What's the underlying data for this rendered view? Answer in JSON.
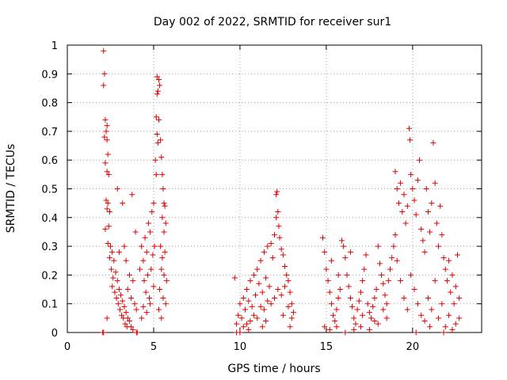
{
  "chart_data": {
    "type": "scatter",
    "title": "Day 002 of 2022, SRMTID for receiver sur1",
    "xlabel": "GPS time / hours",
    "ylabel": "SRMTID / TECUs",
    "xlim": [
      0,
      24
    ],
    "ylim": [
      0,
      1
    ],
    "xticks": [
      0,
      5,
      10,
      15,
      20
    ],
    "xtick_labels": [
      "0",
      "5",
      "10",
      "15",
      "20"
    ],
    "yticks": [
      0,
      0.1,
      0.2,
      0.3,
      0.4,
      0.5,
      0.6,
      0.7,
      0.8,
      0.9,
      1
    ],
    "ytick_labels": [
      "0",
      "0.1",
      "0.2",
      "0.3",
      "0.4",
      "0.5",
      "0.6",
      "0.7",
      "0.8",
      "0.9",
      "1"
    ],
    "grid": true,
    "marker": "+",
    "series": [
      {
        "name": "sur1",
        "color": "#e00000",
        "points": [
          [
            2.1,
            0.98
          ],
          [
            2.15,
            0.9
          ],
          [
            2.1,
            0.86
          ],
          [
            2.2,
            0.74
          ],
          [
            2.3,
            0.72
          ],
          [
            2.25,
            0.7
          ],
          [
            2.15,
            0.68
          ],
          [
            2.3,
            0.67
          ],
          [
            2.35,
            0.62
          ],
          [
            2.2,
            0.59
          ],
          [
            2.3,
            0.56
          ],
          [
            2.4,
            0.55
          ],
          [
            2.25,
            0.46
          ],
          [
            2.35,
            0.45
          ],
          [
            2.3,
            0.43
          ],
          [
            2.45,
            0.42
          ],
          [
            2.2,
            0.36
          ],
          [
            2.4,
            0.37
          ],
          [
            2.5,
            0.3
          ],
          [
            2.35,
            0.31
          ],
          [
            2.6,
            0.28
          ],
          [
            2.45,
            0.26
          ],
          [
            2.7,
            0.25
          ],
          [
            2.55,
            0.22
          ],
          [
            2.8,
            0.21
          ],
          [
            2.65,
            0.19
          ],
          [
            2.9,
            0.18
          ],
          [
            2.6,
            0.16
          ],
          [
            3.0,
            0.15
          ],
          [
            2.75,
            0.14
          ],
          [
            3.1,
            0.13
          ],
          [
            2.85,
            0.12
          ],
          [
            3.2,
            0.11
          ],
          [
            2.95,
            0.1
          ],
          [
            3.3,
            0.09
          ],
          [
            3.05,
            0.08
          ],
          [
            3.4,
            0.07
          ],
          [
            3.15,
            0.06
          ],
          [
            3.5,
            0.05
          ],
          [
            3.25,
            0.05
          ],
          [
            3.6,
            0.04
          ],
          [
            3.35,
            0.03
          ],
          [
            3.7,
            0.02
          ],
          [
            3.45,
            0.02
          ],
          [
            3.8,
            0.01
          ],
          [
            2.3,
            0.05
          ],
          [
            2.9,
            0.5
          ],
          [
            3.2,
            0.45
          ],
          [
            3.0,
            0.28
          ],
          [
            3.3,
            0.3
          ],
          [
            3.4,
            0.25
          ],
          [
            3.6,
            0.2
          ],
          [
            3.5,
            0.15
          ],
          [
            3.7,
            0.12
          ],
          [
            3.8,
            0.18
          ],
          [
            3.9,
            0.1
          ],
          [
            4.0,
            0.08
          ],
          [
            3.75,
            0.48
          ],
          [
            3.95,
            0.35
          ],
          [
            2.05,
            0.0
          ],
          [
            2.1,
            0.0
          ],
          [
            4.0,
            0.0
          ],
          [
            4.05,
            0.0
          ],
          [
            4.2,
            0.22
          ],
          [
            4.3,
            0.3
          ],
          [
            4.4,
            0.25
          ],
          [
            4.5,
            0.33
          ],
          [
            4.6,
            0.28
          ],
          [
            4.7,
            0.38
          ],
          [
            4.8,
            0.35
          ],
          [
            4.9,
            0.42
          ],
          [
            5.0,
            0.45
          ],
          [
            4.45,
            0.18
          ],
          [
            4.55,
            0.14
          ],
          [
            4.65,
            0.2
          ],
          [
            4.75,
            0.12
          ],
          [
            4.85,
            0.22
          ],
          [
            4.95,
            0.27
          ],
          [
            5.05,
            0.3
          ],
          [
            5.15,
            0.55
          ],
          [
            5.1,
            0.6
          ],
          [
            5.2,
            0.69
          ],
          [
            5.25,
            0.66
          ],
          [
            5.15,
            0.75
          ],
          [
            5.3,
            0.74
          ],
          [
            5.2,
            0.83
          ],
          [
            5.25,
            0.84
          ],
          [
            5.3,
            0.88
          ],
          [
            5.2,
            0.89
          ],
          [
            5.35,
            0.86
          ],
          [
            5.4,
            0.67
          ],
          [
            5.45,
            0.61
          ],
          [
            5.5,
            0.55
          ],
          [
            5.55,
            0.5
          ],
          [
            5.6,
            0.45
          ],
          [
            5.65,
            0.44
          ],
          [
            5.5,
            0.4
          ],
          [
            5.7,
            0.38
          ],
          [
            5.6,
            0.35
          ],
          [
            5.4,
            0.3
          ],
          [
            5.5,
            0.26
          ],
          [
            5.45,
            0.22
          ],
          [
            5.6,
            0.2
          ],
          [
            5.35,
            0.15
          ],
          [
            5.55,
            0.12
          ],
          [
            5.3,
            0.08
          ],
          [
            5.45,
            0.05
          ],
          [
            5.7,
            0.1
          ],
          [
            5.75,
            0.18
          ],
          [
            5.65,
            0.28
          ],
          [
            4.3,
            0.05
          ],
          [
            4.4,
            0.09
          ],
          [
            4.6,
            0.07
          ],
          [
            4.8,
            0.1
          ],
          [
            5.0,
            0.16
          ],
          [
            9.7,
            0.19
          ],
          [
            9.8,
            0.03
          ],
          [
            9.9,
            0.06
          ],
          [
            10.0,
            0.1
          ],
          [
            10.1,
            0.05
          ],
          [
            10.2,
            0.12
          ],
          [
            10.3,
            0.08
          ],
          [
            10.4,
            0.15
          ],
          [
            10.5,
            0.11
          ],
          [
            10.6,
            0.18
          ],
          [
            10.7,
            0.09
          ],
          [
            10.8,
            0.2
          ],
          [
            10.9,
            0.13
          ],
          [
            11.0,
            0.22
          ],
          [
            11.1,
            0.17
          ],
          [
            11.2,
            0.25
          ],
          [
            11.3,
            0.14
          ],
          [
            11.4,
            0.28
          ],
          [
            11.5,
            0.19
          ],
          [
            11.6,
            0.3
          ],
          [
            11.7,
            0.16
          ],
          [
            11.8,
            0.31
          ],
          [
            11.9,
            0.26
          ],
          [
            12.0,
            0.34
          ],
          [
            12.1,
            0.48
          ],
          [
            12.15,
            0.49
          ],
          [
            12.2,
            0.42
          ],
          [
            12.1,
            0.4
          ],
          [
            12.25,
            0.37
          ],
          [
            12.3,
            0.33
          ],
          [
            12.4,
            0.29
          ],
          [
            12.5,
            0.27
          ],
          [
            12.6,
            0.23
          ],
          [
            12.7,
            0.2
          ],
          [
            12.8,
            0.18
          ],
          [
            12.9,
            0.14
          ],
          [
            13.0,
            0.1
          ],
          [
            13.1,
            0.07
          ],
          [
            9.8,
            0.0
          ],
          [
            10.0,
            0.0
          ],
          [
            10.2,
            0.02
          ],
          [
            10.4,
            0.03
          ],
          [
            10.6,
            0.04
          ],
          [
            10.8,
            0.06
          ],
          [
            11.0,
            0.05
          ],
          [
            11.2,
            0.09
          ],
          [
            11.4,
            0.08
          ],
          [
            11.6,
            0.11
          ],
          [
            11.8,
            0.1
          ],
          [
            12.0,
            0.12
          ],
          [
            12.2,
            0.15
          ],
          [
            12.4,
            0.13
          ],
          [
            12.6,
            0.16
          ],
          [
            12.8,
            0.09
          ],
          [
            13.0,
            0.05
          ],
          [
            12.9,
            0.02
          ],
          [
            11.5,
            0.04
          ],
          [
            10.5,
            0.01
          ],
          [
            11.3,
            0.02
          ],
          [
            12.5,
            0.06
          ],
          [
            14.8,
            0.33
          ],
          [
            14.9,
            0.28
          ],
          [
            15.0,
            0.22
          ],
          [
            15.1,
            0.18
          ],
          [
            15.2,
            0.14
          ],
          [
            15.3,
            0.1
          ],
          [
            15.4,
            0.06
          ],
          [
            15.5,
            0.04
          ],
          [
            15.6,
            0.08
          ],
          [
            15.7,
            0.12
          ],
          [
            15.8,
            0.15
          ],
          [
            15.9,
            0.32
          ],
          [
            16.0,
            0.3
          ],
          [
            16.1,
            0.26
          ],
          [
            16.2,
            0.2
          ],
          [
            16.3,
            0.16
          ],
          [
            16.4,
            0.12
          ],
          [
            16.5,
            0.09
          ],
          [
            16.6,
            0.05
          ],
          [
            16.7,
            0.03
          ],
          [
            16.8,
            0.08
          ],
          [
            16.9,
            0.11
          ],
          [
            17.0,
            0.14
          ],
          [
            17.1,
            0.18
          ],
          [
            17.2,
            0.22
          ],
          [
            17.3,
            0.27
          ],
          [
            17.4,
            0.1
          ],
          [
            17.5,
            0.07
          ],
          [
            17.6,
            0.05
          ],
          [
            17.7,
            0.09
          ],
          [
            17.8,
            0.12
          ],
          [
            17.9,
            0.15
          ],
          [
            18.0,
            0.3
          ],
          [
            18.1,
            0.24
          ],
          [
            18.2,
            0.2
          ],
          [
            18.3,
            0.17
          ],
          [
            18.4,
            0.13
          ],
          [
            18.5,
            0.1
          ],
          [
            18.6,
            0.18
          ],
          [
            18.7,
            0.22
          ],
          [
            18.8,
            0.26
          ],
          [
            18.9,
            0.3
          ],
          [
            19.0,
            0.34
          ],
          [
            14.9,
            0.02
          ],
          [
            15.2,
            0.01
          ],
          [
            15.6,
            0.02
          ],
          [
            16.1,
            0.0
          ],
          [
            16.6,
            0.01
          ],
          [
            17.0,
            0.02
          ],
          [
            17.5,
            0.01
          ],
          [
            18.0,
            0.03
          ],
          [
            18.5,
            0.05
          ],
          [
            15.3,
            0.25
          ],
          [
            15.7,
            0.2
          ],
          [
            16.4,
            0.28
          ],
          [
            17.1,
            0.06
          ],
          [
            17.8,
            0.04
          ],
          [
            18.3,
            0.08
          ],
          [
            19.0,
            0.56
          ],
          [
            19.1,
            0.5
          ],
          [
            19.2,
            0.45
          ],
          [
            19.3,
            0.52
          ],
          [
            19.4,
            0.42
          ],
          [
            19.5,
            0.48
          ],
          [
            19.6,
            0.38
          ],
          [
            19.7,
            0.44
          ],
          [
            19.8,
            0.71
          ],
          [
            19.85,
            0.67
          ],
          [
            19.9,
            0.55
          ],
          [
            20.0,
            0.5
          ],
          [
            20.1,
            0.46
          ],
          [
            20.2,
            0.41
          ],
          [
            20.3,
            0.53
          ],
          [
            20.4,
            0.6
          ],
          [
            20.5,
            0.36
          ],
          [
            20.6,
            0.32
          ],
          [
            20.7,
            0.28
          ],
          [
            20.8,
            0.5
          ],
          [
            20.9,
            0.42
          ],
          [
            21.0,
            0.35
          ],
          [
            21.1,
            0.45
          ],
          [
            21.2,
            0.66
          ],
          [
            21.3,
            0.52
          ],
          [
            21.4,
            0.38
          ],
          [
            21.5,
            0.3
          ],
          [
            21.6,
            0.44
          ],
          [
            21.7,
            0.34
          ],
          [
            21.8,
            0.26
          ],
          [
            21.9,
            0.22
          ],
          [
            22.0,
            0.18
          ],
          [
            22.1,
            0.25
          ],
          [
            22.2,
            0.14
          ],
          [
            22.3,
            0.2
          ],
          [
            22.4,
            0.1
          ],
          [
            22.5,
            0.16
          ],
          [
            22.6,
            0.27
          ],
          [
            22.7,
            0.12
          ],
          [
            19.1,
            0.25
          ],
          [
            19.3,
            0.18
          ],
          [
            19.5,
            0.12
          ],
          [
            19.7,
            0.08
          ],
          [
            19.9,
            0.2
          ],
          [
            20.1,
            0.15
          ],
          [
            20.3,
            0.1
          ],
          [
            20.5,
            0.06
          ],
          [
            20.7,
            0.04
          ],
          [
            20.9,
            0.12
          ],
          [
            21.1,
            0.08
          ],
          [
            21.3,
            0.18
          ],
          [
            21.5,
            0.05
          ],
          [
            21.7,
            0.1
          ],
          [
            21.9,
            0.02
          ],
          [
            22.1,
            0.06
          ],
          [
            22.3,
            0.01
          ],
          [
            22.5,
            0.03
          ],
          [
            22.7,
            0.05
          ],
          [
            21.0,
            0.02
          ],
          [
            20.2,
            0.0
          ],
          [
            21.8,
            0.0
          ]
        ]
      }
    ]
  }
}
